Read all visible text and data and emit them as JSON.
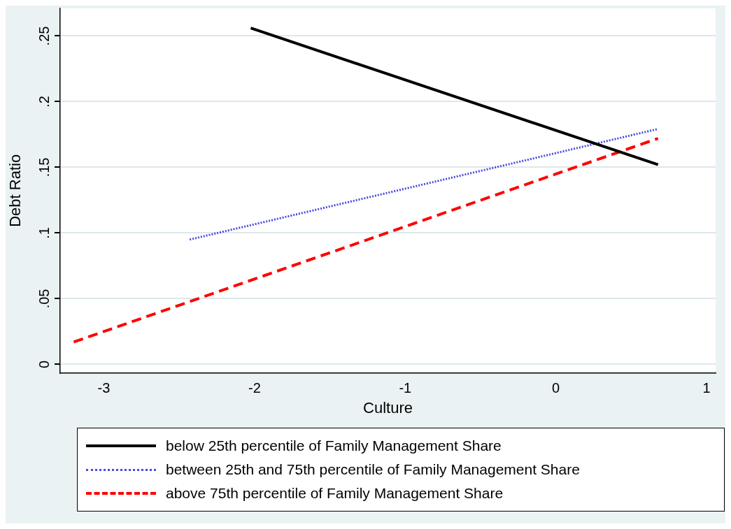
{
  "chart_data": {
    "type": "line",
    "xlabel": "Culture",
    "ylabel": "Debt Ratio",
    "xlim": [
      -3.29,
      1.06
    ],
    "xticks": [
      -3,
      -2,
      -1,
      0,
      1
    ],
    "ylim": [
      -0.0065,
      0.271
    ],
    "yticks": [
      {
        "value": 0,
        "label": "0"
      },
      {
        "value": 0.05,
        "label": ".05"
      },
      {
        "value": 0.1,
        "label": ".1"
      },
      {
        "value": 0.15,
        "label": ".15"
      },
      {
        "value": 0.2,
        "label": ".2"
      },
      {
        "value": 0.25,
        "label": ".25"
      }
    ],
    "grid": "y",
    "legend": "bottom",
    "marker": "none",
    "series": [
      {
        "name": "below 25th percentile of Family Management Share",
        "color": "#000000",
        "line_style": "solid",
        "x": [
          -2.025,
          0.678
        ],
        "values": [
          0.256,
          0.152
        ]
      },
      {
        "name": "between 25th and 75th percentile of Family Management Share",
        "color": "#4a4ae0",
        "line_style": "dotted",
        "x": [
          -2.43,
          0.67
        ],
        "values": [
          0.095,
          0.179
        ]
      },
      {
        "name": "above 75th percentile of Family Management Share",
        "color": "#ff0000",
        "line_style": "dashed",
        "x": [
          -3.2,
          0.678
        ],
        "values": [
          0.017,
          0.172
        ]
      }
    ]
  }
}
